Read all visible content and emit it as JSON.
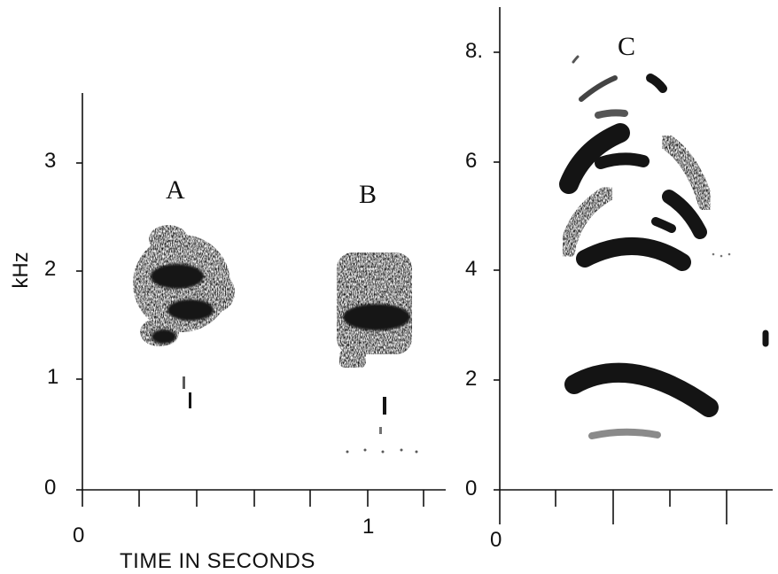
{
  "left_panel": {
    "y_axis_label": "kHz",
    "y_ticks": [
      "0",
      "1",
      "2",
      "3"
    ],
    "x_ticks": [
      "0",
      "1"
    ],
    "x_axis_label": "TIME IN SECONDS",
    "call_labels": [
      "A",
      "B"
    ]
  },
  "right_panel": {
    "y_ticks": [
      "0",
      "2",
      "4",
      "6",
      "8."
    ],
    "x_ticks": [
      "0"
    ],
    "call_labels": [
      "C"
    ]
  }
}
